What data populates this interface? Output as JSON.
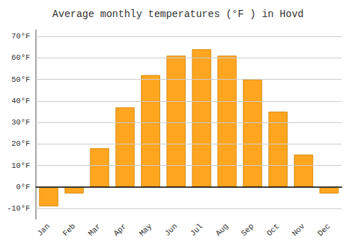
{
  "chart_data": {
    "type": "bar",
    "title": "Average monthly temperatures (°F ) in Hovd",
    "categories": [
      "Jan",
      "Feb",
      "Mar",
      "Apr",
      "May",
      "Jun",
      "Jul",
      "Aug",
      "Sep",
      "Oct",
      "Nov",
      "Dec"
    ],
    "values": [
      -9,
      -3,
      18,
      37,
      52,
      61,
      64,
      61,
      50,
      35,
      15,
      -3
    ],
    "color": "#FFA520",
    "ylim": [
      -15,
      73
    ],
    "yticks": [
      {
        "value": -10,
        "label": "-10°F"
      },
      {
        "value": 0,
        "label": "0°F"
      },
      {
        "value": 10,
        "label": "10°F"
      },
      {
        "value": 20,
        "label": "20°F"
      },
      {
        "value": 30,
        "label": "30°F"
      },
      {
        "value": 40,
        "label": "40°F"
      },
      {
        "value": 50,
        "label": "50°F"
      },
      {
        "value": 60,
        "label": "60°F"
      },
      {
        "value": 70,
        "label": "70°F"
      }
    ],
    "grid": true
  }
}
